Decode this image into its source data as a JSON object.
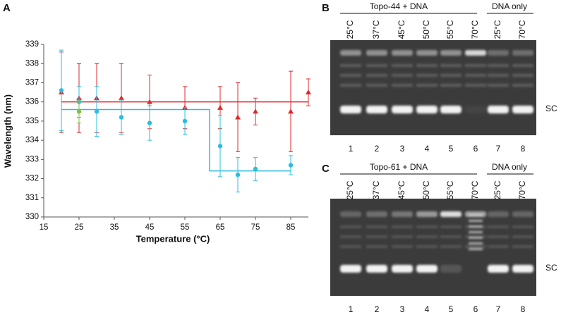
{
  "chart_data": {
    "type": "scatter",
    "xlabel": "Temperature (°C)",
    "ylabel": "Wavelength (nm)",
    "xlim": [
      15,
      90
    ],
    "ylim": [
      330,
      339
    ],
    "xticks": [
      15,
      25,
      35,
      45,
      55,
      65,
      75,
      85
    ],
    "yticks": [
      330,
      331,
      332,
      333,
      334,
      335,
      336,
      337,
      338,
      339
    ],
    "series": [
      {
        "color": "#e0282e",
        "marker": "triangle",
        "x": [
          20,
          25,
          30,
          37,
          45,
          55,
          65,
          70,
          75,
          85,
          90
        ],
        "values": [
          336.5,
          336.2,
          336.2,
          336.2,
          336.0,
          335.7,
          335.7,
          335.2,
          335.5,
          335.5,
          336.5
        ],
        "errors": [
          2.1,
          1.8,
          1.8,
          1.8,
          1.4,
          1.1,
          1.1,
          1.8,
          0.7,
          2.1,
          0.7
        ]
      },
      {
        "color": "#2bbde0",
        "marker": "circle",
        "x": [
          20,
          25,
          30,
          37,
          45,
          55,
          65,
          70,
          75,
          85
        ],
        "values": [
          336.6,
          336.0,
          335.5,
          335.2,
          334.9,
          335.0,
          333.7,
          332.2,
          332.5,
          332.7
        ],
        "errors": [
          2.1,
          0.8,
          1.3,
          0.9,
          0.9,
          0.7,
          1.6,
          0.9,
          0.6,
          0.5
        ]
      },
      {
        "color": "#7cc242",
        "marker": "circle",
        "x": [
          25
        ],
        "values": [
          335.5
        ],
        "errors": [
          0.6
        ]
      }
    ],
    "fit_lines": [
      {
        "color": "#e0282e",
        "x": [
          20,
          90
        ],
        "values": [
          336.0,
          336.0
        ]
      },
      {
        "color": "#2bbde0",
        "x": [
          20,
          62,
          62,
          85
        ],
        "values": [
          335.6,
          335.6,
          332.4,
          332.4
        ]
      }
    ]
  },
  "panel_label": "A",
  "gels": [
    {
      "label": "B",
      "title": "Topo-44 + DNA",
      "control": "DNA only",
      "temps": [
        "25°C",
        "37°C",
        "45°C",
        "50°C",
        "55°C",
        "70°C",
        "25°C",
        "70°C"
      ],
      "lanes": [
        1,
        2,
        3,
        4,
        5,
        6,
        7,
        8
      ],
      "band": "SC"
    },
    {
      "label": "C",
      "title": "Topo-61 + DNA",
      "control": "DNA only",
      "temps": [
        "25°C",
        "37°C",
        "45°C",
        "50°C",
        "55°C",
        "70°C",
        "25°C",
        "70°C"
      ],
      "lanes": [
        1,
        2,
        3,
        4,
        5,
        6,
        7,
        8
      ],
      "band": "SC"
    }
  ]
}
